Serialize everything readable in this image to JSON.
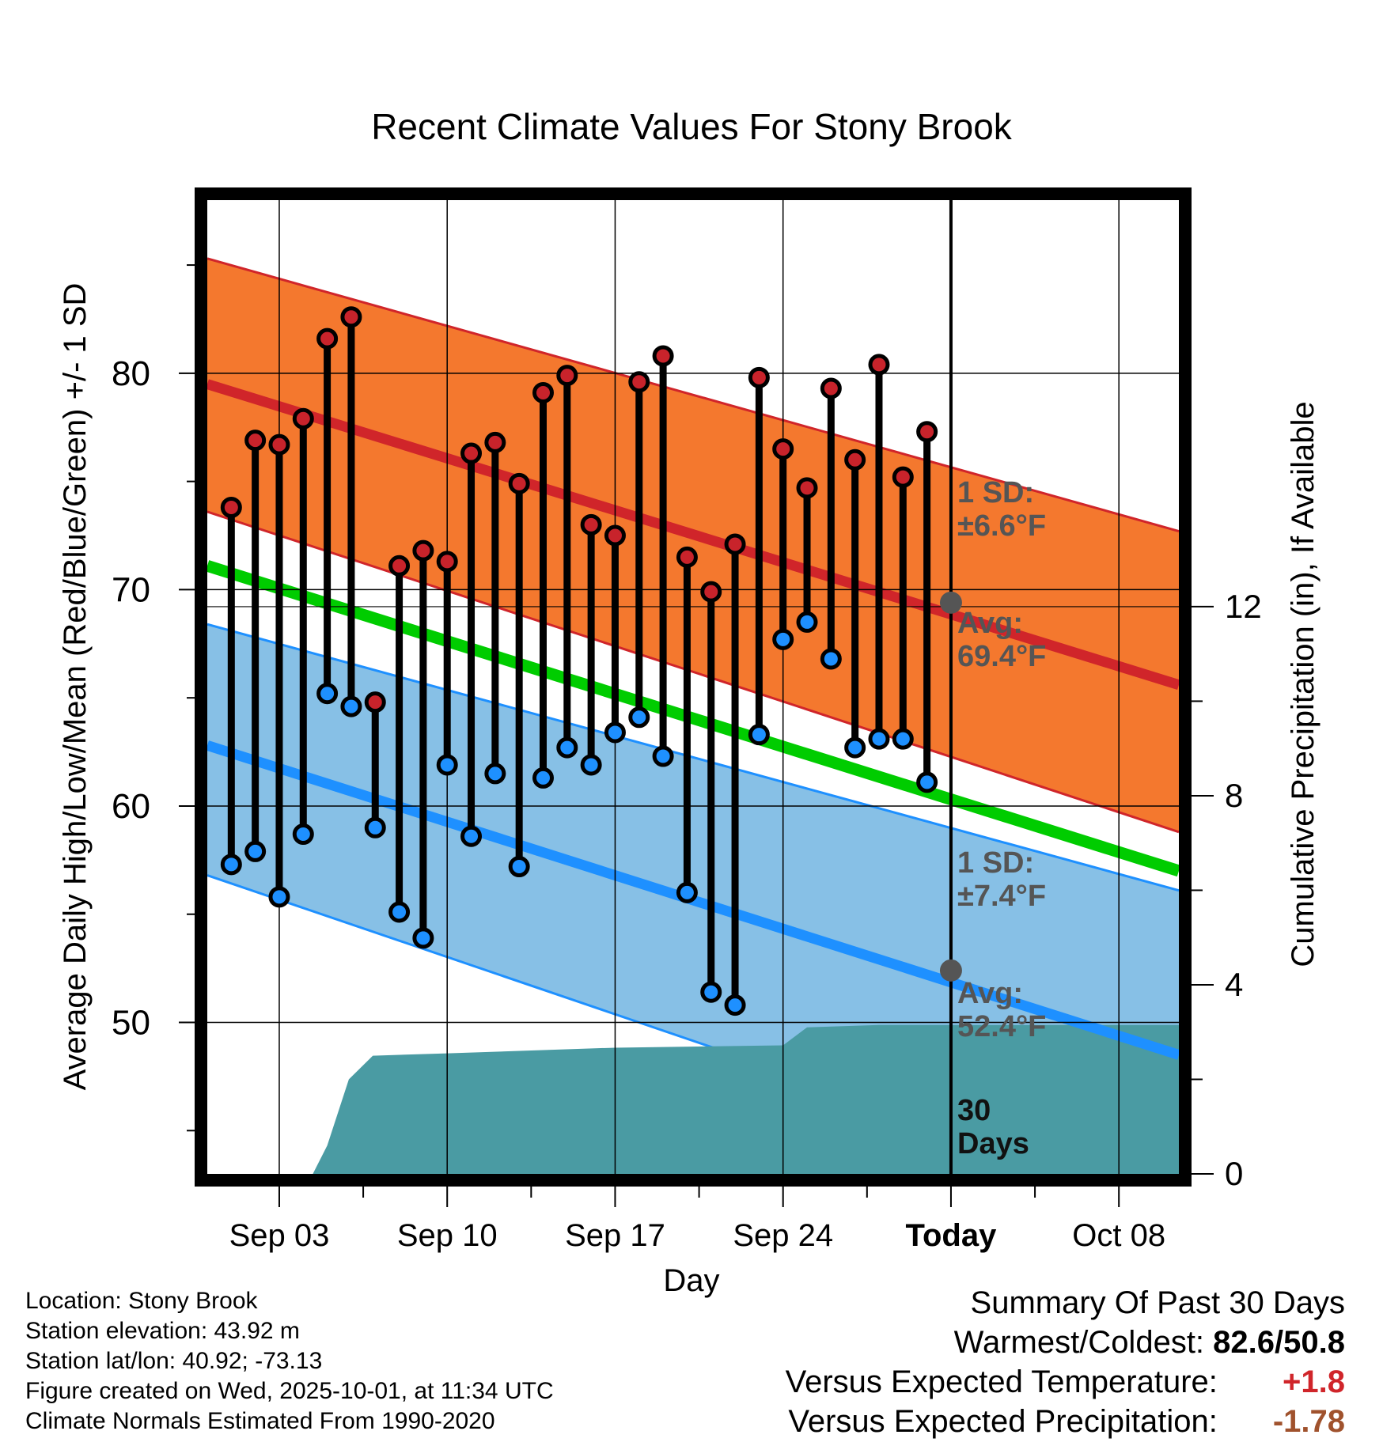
{
  "chart_data": {
    "type": "line",
    "title": "Recent Climate Values For Stony Brook",
    "xlabel": "Day",
    "ylabel": "Average Daily High/Low/Mean (Red/Blue/Green) +/- 1 SD",
    "y2label": "Cumulative Precipitation (in), If Available",
    "xlim": [
      0,
      40.5
    ],
    "ylim": [
      43,
      88
    ],
    "y2lim": [
      0,
      20.6
    ],
    "x_ticks": [
      {
        "x": 3,
        "label": "Sep 03"
      },
      {
        "x": 10,
        "label": "Sep 10"
      },
      {
        "x": 17,
        "label": "Sep 17"
      },
      {
        "x": 24,
        "label": "Sep 24"
      },
      {
        "x": 31,
        "label": "Today"
      },
      {
        "x": 38,
        "label": "Oct 08"
      }
    ],
    "y_ticks": [
      50,
      60,
      70,
      80
    ],
    "y2_ticks": [
      0,
      4,
      8,
      12
    ],
    "today_x": 31,
    "days": [
      1,
      2,
      3,
      4,
      5,
      6,
      7,
      8,
      9,
      10,
      11,
      12,
      13,
      14,
      15,
      16,
      17,
      18,
      19,
      20,
      21,
      22,
      23,
      24,
      25,
      26,
      27,
      28,
      29,
      30
    ],
    "daily_high": [
      73.8,
      76.9,
      76.7,
      77.9,
      81.6,
      82.6,
      64.8,
      71.1,
      71.8,
      71.3,
      76.3,
      76.8,
      74.9,
      79.1,
      79.9,
      73.0,
      72.5,
      79.6,
      80.8,
      71.5,
      69.9,
      72.1,
      79.8,
      76.5,
      74.7,
      79.3,
      76.0,
      80.4,
      75.2,
      77.3
    ],
    "daily_low": [
      57.3,
      57.9,
      55.8,
      58.7,
      65.2,
      64.6,
      59.0,
      55.1,
      53.9,
      61.9,
      58.6,
      61.5,
      57.2,
      61.3,
      62.7,
      61.9,
      63.4,
      64.1,
      62.3,
      56.0,
      51.4,
      50.8,
      63.3,
      67.7,
      68.5,
      66.8,
      62.7,
      63.1,
      63.1,
      61.1
    ],
    "normal_high": {
      "x": [
        0,
        40.5
      ],
      "y": [
        79.5,
        65.6
      ]
    },
    "normal_high_sd_band": {
      "upper": [
        85.3,
        72.7
      ],
      "lower": [
        73.6,
        58.8
      ]
    },
    "normal_low": {
      "x": [
        0,
        40.5
      ],
      "y": [
        62.8,
        48.5
      ]
    },
    "normal_low_sd_band": {
      "upper": [
        68.4,
        56.1
      ],
      "lower": [
        56.8,
        41.5
      ]
    },
    "normal_mean": {
      "x": [
        0,
        40.5
      ],
      "y": [
        71.1,
        57.0
      ]
    },
    "cumulative_precip": {
      "x": [
        0,
        4.4,
        5,
        5.9,
        6.9,
        10,
        17,
        24,
        25,
        28,
        40.5
      ],
      "y": [
        0,
        0,
        0.6,
        2.0,
        2.5,
        2.55,
        2.67,
        2.72,
        3.1,
        3.15,
        3.15
      ]
    },
    "annotations": {
      "high_sd": {
        "line1": "1 SD:",
        "line2": "±6.6°F"
      },
      "high_avg": {
        "line1": "Avg:",
        "line2": "69.4°F",
        "value": 69.4
      },
      "low_sd": {
        "line1": "1 SD:",
        "line2": "±7.4°F"
      },
      "low_avg": {
        "line1": "Avg:",
        "line2": "52.4°F",
        "value": 52.4
      },
      "period": {
        "line1": "30",
        "line2": "Days"
      }
    },
    "colors": {
      "high_band": "#F4782E",
      "high_line": "#D0252A",
      "low_band": "#87C0E6",
      "low_line": "#1E90FF",
      "mean_line": "#00CC00",
      "precip": "#4A9BA3",
      "high_marker": "#C8232B",
      "low_marker": "#1E90FF",
      "annotation_text": "#555555"
    }
  },
  "info": {
    "location": "Location: Stony Brook",
    "elevation": "Station elevation: 43.92 m",
    "latlon": "Station lat/lon: 40.92; -73.13",
    "created": "Figure created on Wed, 2025-10-01, at 11:34 UTC",
    "normals": "Climate Normals Estimated From 1990-2020"
  },
  "summary": {
    "title": "Summary Of Past 30 Days",
    "warm_cold_label": "Warmest/Coldest:",
    "warm_cold_value": "82.6/50.8",
    "temp_label": "Versus Expected Temperature:",
    "temp_value": "+1.8",
    "temp_color": "#D0252A",
    "precip_label": "Versus Expected Precipitation:",
    "precip_value": "-1.78",
    "precip_color": "#A0522D"
  }
}
